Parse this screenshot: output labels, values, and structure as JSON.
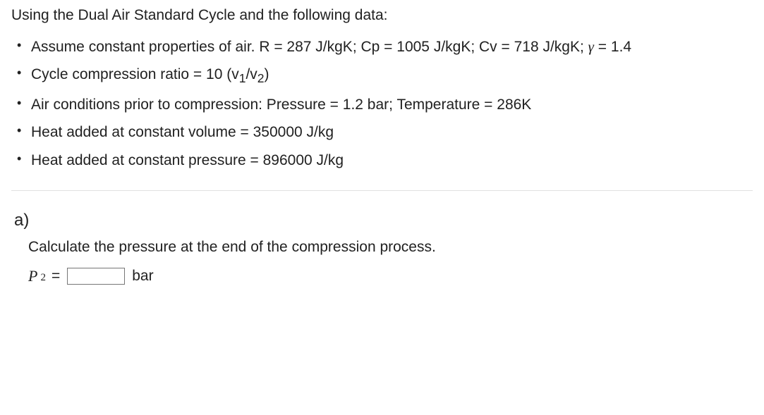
{
  "intro": "Using the Dual Air Standard Cycle and the following data:",
  "bullets": {
    "b1_pre": "Assume constant properties of air. R = 287 J/kgK; Cp = 1005 J/kgK; Cv = 718 J/kgK; ",
    "b1_gamma": "γ",
    "b1_post": " = 1.4",
    "b2_pre": "Cycle compression ratio = 10 (v",
    "b2_sub1": "1",
    "b2_mid": "/v",
    "b2_sub2": "2",
    "b2_post": ")",
    "b3": "Air conditions prior to compression: Pressure = 1.2 bar; Temperature = 286K",
    "b4": "Heat added at constant volume = 350000 J/kg",
    "b5": "Heat added at constant pressure = 896000 J/kg"
  },
  "part": {
    "label": "a)",
    "question": "Calculate the pressure at the end of the compression process.",
    "var": "P",
    "sub": "2",
    "eq": "=",
    "unit": "bar"
  }
}
